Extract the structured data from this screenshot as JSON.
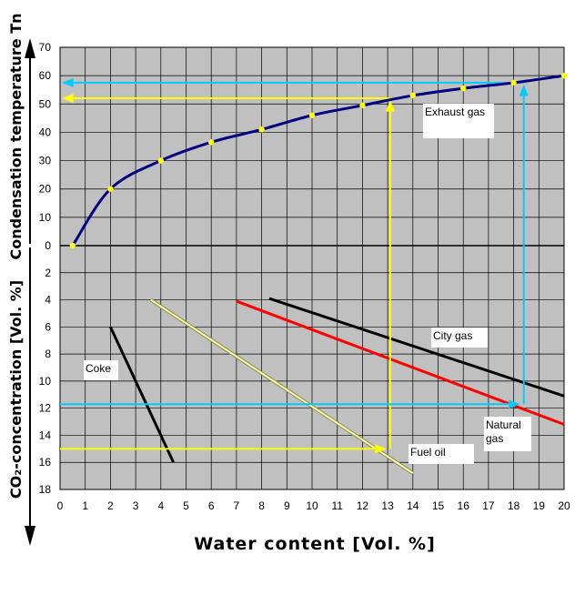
{
  "chart_data": {
    "type": "line",
    "xlabel": "Water content [Vol. %]",
    "ylabel_top": "Condensation temperature Tn",
    "ylabel_bottom": "CO₂-concentration [Vol. %]",
    "x_ticks": [
      "0",
      "1",
      "2",
      "3",
      "4",
      "5",
      "6",
      "7",
      "8",
      "9",
      "10",
      "11",
      "12",
      "13",
      "14",
      "15",
      "16",
      "17",
      "18",
      "19",
      "20"
    ],
    "y_ticks_top": [
      "70",
      "60",
      "50",
      "40",
      "30",
      "20",
      "10",
      "0"
    ],
    "y_ticks_bottom": [
      "2",
      "4",
      "6",
      "8",
      "10",
      "12",
      "14",
      "16",
      "18"
    ],
    "xlim": [
      0,
      20
    ],
    "ylim_top": [
      0,
      70
    ],
    "ylim_bottom": [
      0,
      18
    ],
    "grid": true,
    "exhaust_gas": {
      "name": "Exhaust gas",
      "points": [
        [
          0.5,
          0
        ],
        [
          2,
          20
        ],
        [
          4,
          30
        ],
        [
          6,
          36.5
        ],
        [
          8,
          41
        ],
        [
          10,
          46
        ],
        [
          12,
          49.5
        ],
        [
          14,
          53
        ],
        [
          16,
          55.5
        ],
        [
          18,
          57.5
        ],
        [
          20,
          60
        ]
      ]
    },
    "fuels": [
      {
        "name": "Coke",
        "points": [
          [
            2,
            6
          ],
          [
            4.5,
            16
          ]
        ],
        "color": "#000000"
      },
      {
        "name": "Fuel oil",
        "points": [
          [
            3.6,
            4
          ],
          [
            14,
            16.8
          ]
        ],
        "color": "#ffff99"
      },
      {
        "name": "Natural gas",
        "points": [
          [
            7,
            4.1
          ],
          [
            20,
            13.2
          ]
        ],
        "color": "#ff0000"
      },
      {
        "name": "City gas",
        "points": [
          [
            8.3,
            3.9
          ],
          [
            20,
            11.1
          ]
        ],
        "color": "#000000"
      }
    ],
    "examples": [
      {
        "name": "Fuel oil",
        "co2": 15,
        "water": 13.1,
        "temperature": 52,
        "color": "#ffff00"
      },
      {
        "name": "Natural gas",
        "co2": 11.7,
        "water": 18.4,
        "temperature": 57.5,
        "color": "#00ccff"
      }
    ],
    "labels": {
      "exhaust": "Exhaust gas",
      "city": "City gas",
      "coke": "Coke",
      "natural": "Natural gas",
      "fuel": "Fuel oil"
    },
    "colors": {
      "background": "#c0c0c0",
      "grid": "#000000",
      "exhaust_line": "#000080",
      "exhaust_marker": "#ffff00"
    }
  }
}
